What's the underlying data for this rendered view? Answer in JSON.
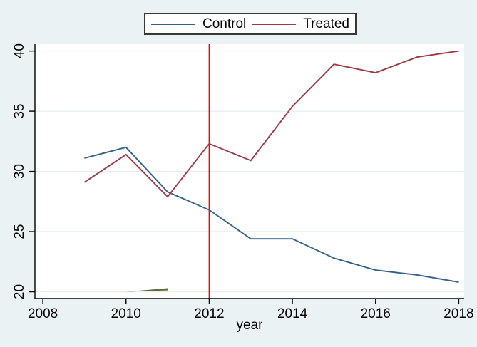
{
  "chart_data": {
    "type": "line",
    "x": [
      2009,
      2010,
      2011,
      2012,
      2013,
      2014,
      2015,
      2016,
      2017,
      2018
    ],
    "series": [
      {
        "name": "Control",
        "color": "#336287",
        "values": [
          31.1,
          32.0,
          28.3,
          26.8,
          24.4,
          24.4,
          22.8,
          21.8,
          21.4,
          20.8
        ]
      },
      {
        "name": "Treated",
        "color": "#a03845",
        "values": [
          29.1,
          31.4,
          27.9,
          32.3,
          30.9,
          35.4,
          38.9,
          38.2,
          39.5,
          40.0
        ]
      }
    ],
    "annotations": {
      "vline": {
        "x": 2012,
        "color": "#ff0000"
      },
      "green_segment": {
        "x": [
          2010,
          2011
        ],
        "values": [
          20.0,
          20.2
        ],
        "color": "#5b7032"
      }
    },
    "title": "",
    "xlabel": "year",
    "ylabel": "",
    "x_ticks": [
      2008,
      2010,
      2012,
      2014,
      2016,
      2018
    ],
    "y_ticks": [
      20,
      25,
      30,
      35,
      40
    ],
    "xlim": [
      2007.81,
      2018.13
    ],
    "ylim": [
      19.44,
      40.57
    ],
    "grid": "horizontal",
    "legend_position": "top-center",
    "legend": [
      {
        "label": "Control"
      },
      {
        "label": "Treated"
      }
    ],
    "colors": {
      "background": "#eaf2f3",
      "plot_background": "#ffffff",
      "gridline": "#e4eef1",
      "axis": "#000000",
      "text": "#000000"
    }
  }
}
